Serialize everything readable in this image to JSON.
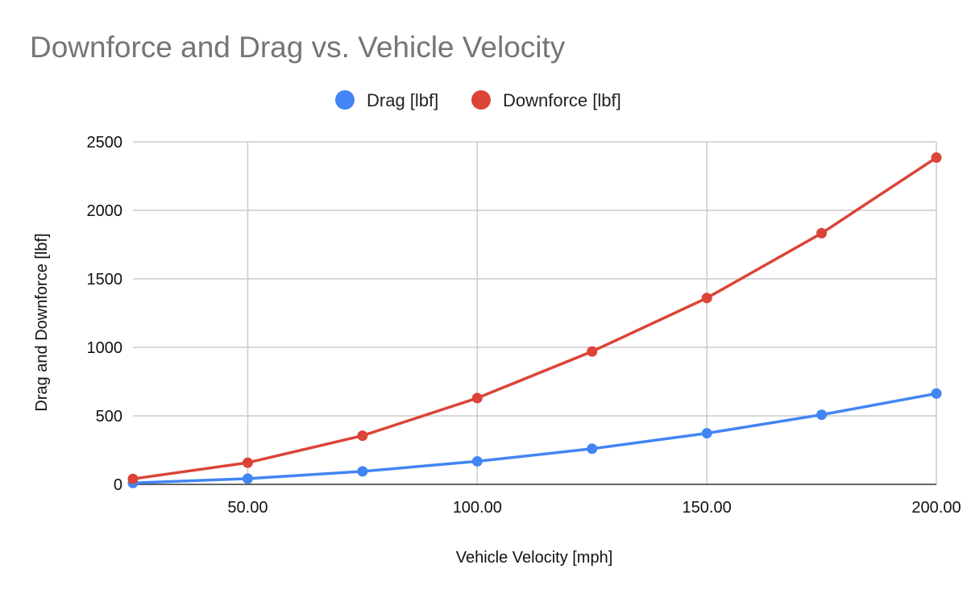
{
  "chart_data": {
    "type": "line",
    "title": "Downforce and Drag vs. Vehicle Velocity",
    "xlabel": "Vehicle Velocity [mph]",
    "ylabel": "Drag and Downforce [lbf]",
    "x": [
      25,
      50,
      75,
      100,
      125,
      150,
      175,
      200
    ],
    "xlim": [
      25,
      200
    ],
    "ylim": [
      0,
      2500
    ],
    "x_ticks": [
      50,
      100,
      150,
      200
    ],
    "x_tick_labels": [
      "50.00",
      "100.00",
      "150.00",
      "200.00"
    ],
    "y_ticks": [
      0,
      500,
      1000,
      1500,
      2000,
      2500
    ],
    "y_tick_labels": [
      "0",
      "500",
      "1000",
      "1500",
      "2000",
      "2500"
    ],
    "grid": true,
    "legend_position": "top",
    "series": [
      {
        "name": "Drag [lbf]",
        "color": "#4285f4",
        "values": [
          10,
          42,
          95,
          168,
          260,
          373,
          508,
          663
        ]
      },
      {
        "name": "Downforce [lbf]",
        "color": "#db4437",
        "values": [
          40,
          158,
          355,
          630,
          970,
          1360,
          1833,
          2385
        ]
      }
    ]
  }
}
